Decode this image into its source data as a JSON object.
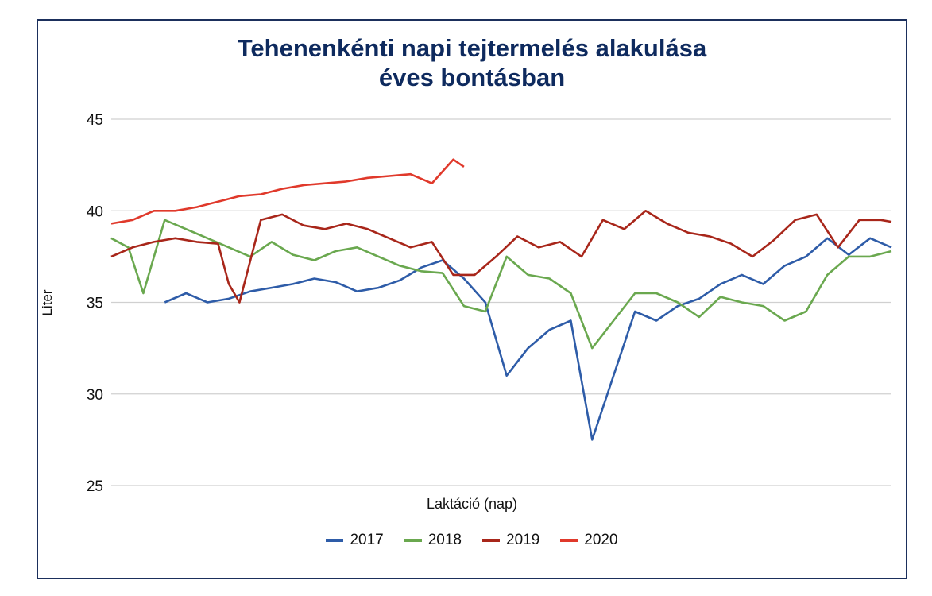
{
  "chart_data": {
    "type": "line",
    "title": [
      "Tehenenkénti napi tejtermelés alakulása",
      "éves bontásban"
    ],
    "xlabel": "Laktáció (nap)",
    "ylabel": "Liter",
    "ylim": [
      25,
      45
    ],
    "yticks": [
      45,
      40,
      35,
      30,
      25
    ],
    "grid": true,
    "legend_position": "bottom",
    "x_range": [
      0,
      365
    ],
    "series": [
      {
        "name": "2017",
        "color": "#2e5ca8",
        "x": [
          25,
          35,
          45,
          55,
          65,
          75,
          85,
          95,
          105,
          115,
          125,
          135,
          145,
          155,
          165,
          175,
          185,
          195,
          205,
          215,
          225,
          235,
          245,
          255,
          265,
          275,
          285,
          295,
          305,
          315,
          325,
          335,
          345,
          355,
          365
        ],
        "values": [
          35.0,
          35.5,
          35.0,
          35.2,
          35.6,
          35.8,
          36.0,
          36.3,
          36.1,
          35.6,
          35.8,
          36.2,
          36.9,
          37.3,
          36.3,
          35.0,
          31.0,
          32.5,
          33.5,
          34.0,
          27.5,
          31.0,
          34.5,
          34.0,
          34.8,
          35.2,
          36.0,
          36.5,
          36.0,
          37.0,
          37.5,
          38.5,
          37.6,
          38.5,
          38.0
        ]
      },
      {
        "name": "2018",
        "color": "#6aa84f",
        "x": [
          0,
          8,
          15,
          25,
          35,
          45,
          55,
          65,
          75,
          85,
          95,
          105,
          115,
          125,
          135,
          145,
          155,
          165,
          175,
          185,
          195,
          205,
          215,
          225,
          235,
          245,
          255,
          265,
          275,
          285,
          295,
          305,
          315,
          325,
          335,
          345,
          355,
          365
        ],
        "values": [
          38.5,
          38.0,
          35.5,
          39.5,
          39.0,
          38.5,
          38.0,
          37.5,
          38.3,
          37.6,
          37.3,
          37.8,
          38.0,
          37.5,
          37.0,
          36.7,
          36.6,
          34.8,
          34.5,
          37.5,
          36.5,
          36.3,
          35.5,
          32.5,
          34.0,
          35.5,
          35.5,
          35.0,
          34.2,
          35.3,
          35.0,
          34.8,
          34.0,
          34.5,
          36.5,
          37.5,
          37.5,
          37.8
        ]
      },
      {
        "name": "2019",
        "color": "#a8261a",
        "x": [
          0,
          10,
          20,
          30,
          40,
          50,
          55,
          60,
          70,
          80,
          90,
          100,
          110,
          120,
          130,
          140,
          150,
          160,
          170,
          180,
          190,
          200,
          210,
          220,
          230,
          240,
          250,
          260,
          270,
          280,
          290,
          300,
          310,
          320,
          330,
          340,
          350,
          360,
          365
        ],
        "values": [
          37.5,
          38.0,
          38.3,
          38.5,
          38.3,
          38.2,
          36.0,
          35.0,
          39.5,
          39.8,
          39.2,
          39.0,
          39.3,
          39.0,
          38.5,
          38.0,
          38.3,
          36.5,
          36.5,
          37.5,
          38.6,
          38.0,
          38.3,
          37.5,
          39.5,
          39.0,
          40.0,
          39.3,
          38.8,
          38.6,
          38.2,
          37.5,
          38.4,
          39.5,
          39.8,
          38.0,
          39.5,
          39.5,
          39.4
        ]
      },
      {
        "name": "2020",
        "color": "#e0392b",
        "x": [
          0,
          10,
          20,
          30,
          40,
          50,
          60,
          70,
          80,
          90,
          100,
          110,
          120,
          130,
          140,
          150,
          160,
          165
        ],
        "values": [
          39.3,
          39.5,
          40.0,
          40.0,
          40.2,
          40.5,
          40.8,
          40.9,
          41.2,
          41.4,
          41.5,
          41.6,
          41.8,
          41.9,
          42.0,
          41.5,
          42.8,
          42.4
        ]
      }
    ]
  }
}
